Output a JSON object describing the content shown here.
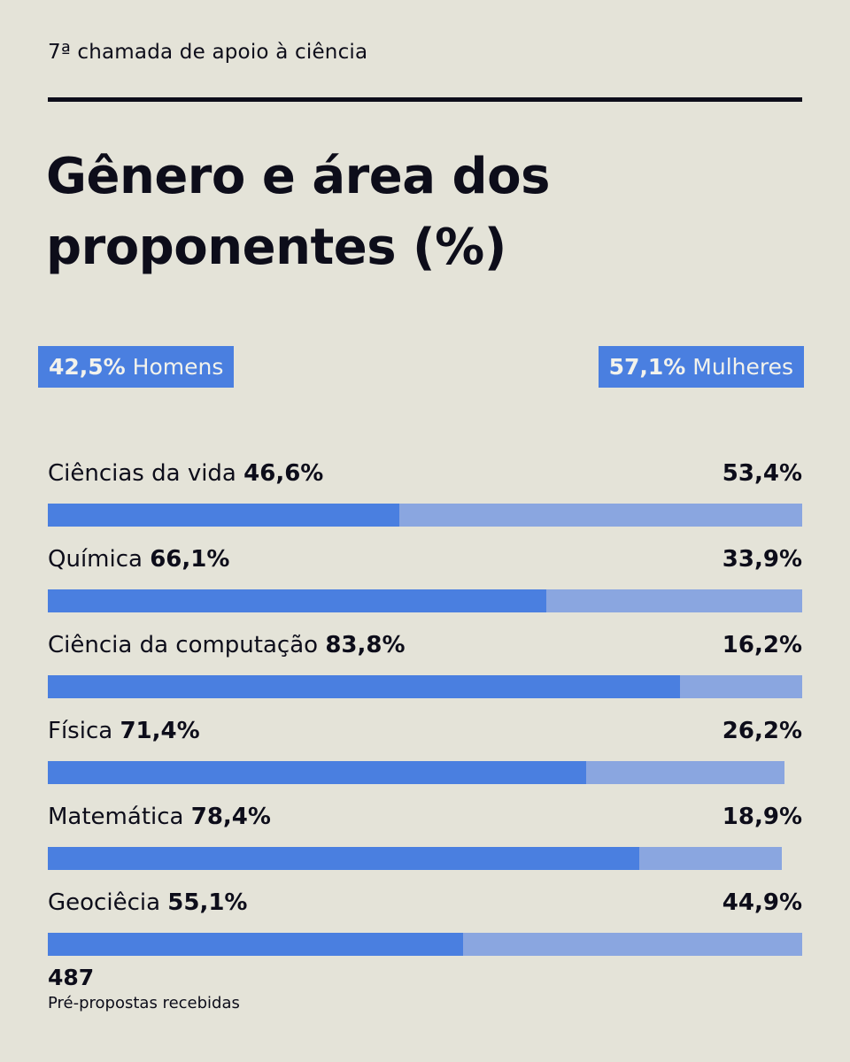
{
  "kicker": "7ª chamada de apoio à ciência",
  "title": "Gênero e área dos proponentes (%)",
  "legend": {
    "men_value": "42,5%",
    "men_label": " Homens",
    "women_value": "57,1%",
    "women_label": " Mulheres"
  },
  "colors": {
    "background": "#e4e3d8",
    "men": "#4a7fe0",
    "women": "#8aa6e0",
    "text": "#0d0d1a"
  },
  "chart_data": {
    "type": "bar",
    "stacked": true,
    "orientation": "horizontal",
    "categories": [
      "Ciências da vida",
      "Química",
      "Ciência da computação",
      "Física",
      "Matemática",
      "Geociêcia"
    ],
    "series": [
      {
        "name": "Homens",
        "values": [
          46.6,
          66.1,
          83.8,
          71.4,
          78.4,
          55.1
        ],
        "labels": [
          "46,6%",
          "66,1%",
          "83,8%",
          "71,4%",
          "78,4%",
          "55,1%"
        ]
      },
      {
        "name": "Mulheres",
        "values": [
          53.4,
          33.9,
          16.2,
          26.2,
          18.9,
          44.9
        ],
        "labels": [
          "53,4%",
          "33,9%",
          "16,2%",
          "26,2%",
          "18,9%",
          "44,9%"
        ]
      }
    ]
  },
  "footer": {
    "total": "487",
    "total_label": "Pré-propostas recebidas"
  }
}
